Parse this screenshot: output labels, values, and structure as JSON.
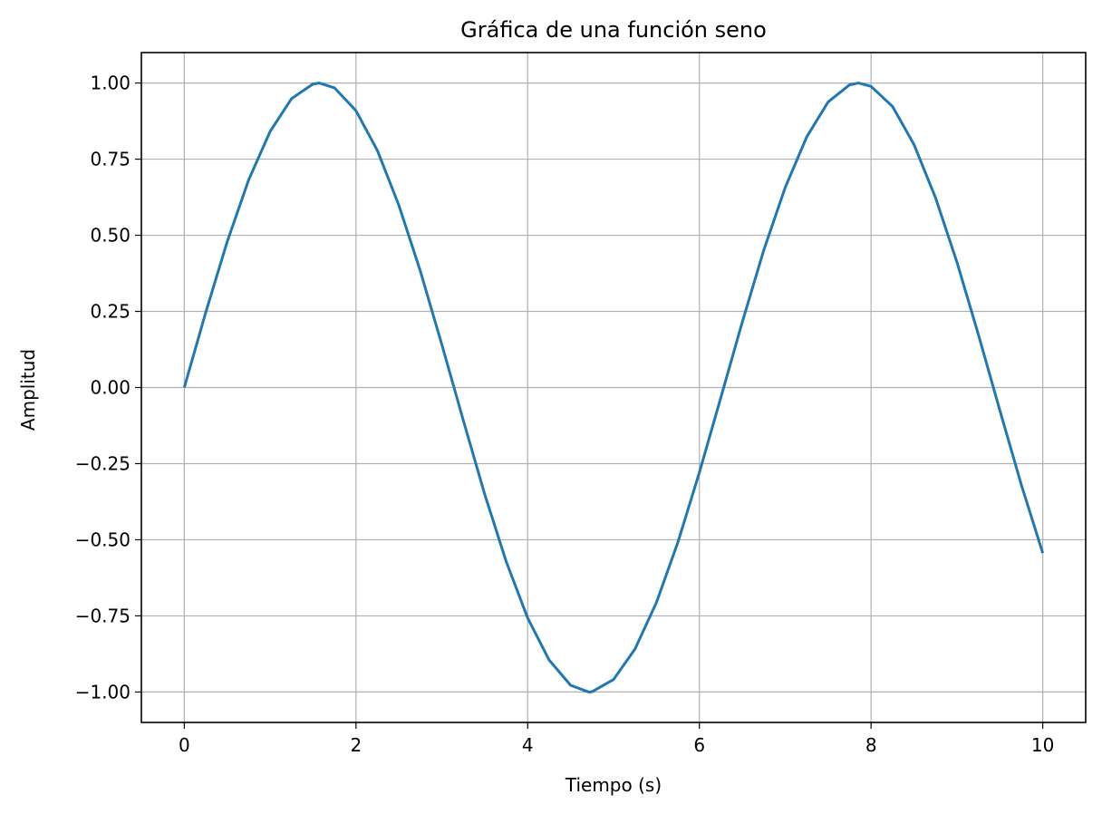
{
  "chart_data": {
    "type": "line",
    "title": "Gráfica de una función seno",
    "xlabel": "Tiempo (s)",
    "ylabel": "Amplitud",
    "xlim": [
      -0.5,
      10.5
    ],
    "ylim": [
      -1.1,
      1.1
    ],
    "x_ticks": [
      0,
      2,
      4,
      6,
      8,
      10
    ],
    "x_tick_labels": [
      "0",
      "2",
      "4",
      "6",
      "8",
      "10"
    ],
    "y_ticks": [
      1.0,
      0.75,
      0.5,
      0.25,
      0.0,
      -0.25,
      -0.5,
      -0.75,
      -1.0
    ],
    "y_tick_labels": [
      "1.00",
      "0.75",
      "0.50",
      "0.25",
      "0.00",
      "−0.25",
      "−0.50",
      "−0.75",
      "−1.00"
    ],
    "grid": true,
    "series": [
      {
        "color": "#1f77b4",
        "x": [
          0,
          0.25,
          0.5,
          0.75,
          1.0,
          1.25,
          1.5,
          1.571,
          1.75,
          2.0,
          2.25,
          2.5,
          2.75,
          3.0,
          3.142,
          3.25,
          3.5,
          3.75,
          4.0,
          4.25,
          4.5,
          4.712,
          4.75,
          5.0,
          5.25,
          5.5,
          5.75,
          6.0,
          6.25,
          6.5,
          6.75,
          7.0,
          7.25,
          7.5,
          7.75,
          7.854,
          8.0,
          8.25,
          8.5,
          8.75,
          9.0,
          9.25,
          9.5,
          9.75,
          10.0
        ],
        "y": [
          0.0,
          0.247,
          0.479,
          0.682,
          0.841,
          0.949,
          0.997,
          1.0,
          0.984,
          0.909,
          0.778,
          0.598,
          0.382,
          0.141,
          0.0,
          -0.108,
          -0.351,
          -0.572,
          -0.757,
          -0.895,
          -0.978,
          -1.0,
          -0.999,
          -0.959,
          -0.859,
          -0.706,
          -0.508,
          -0.279,
          -0.033,
          0.215,
          0.451,
          0.657,
          0.823,
          0.938,
          0.994,
          1.0,
          0.989,
          0.923,
          0.798,
          0.624,
          0.412,
          0.174,
          -0.075,
          -0.319,
          -0.544
        ]
      }
    ]
  }
}
